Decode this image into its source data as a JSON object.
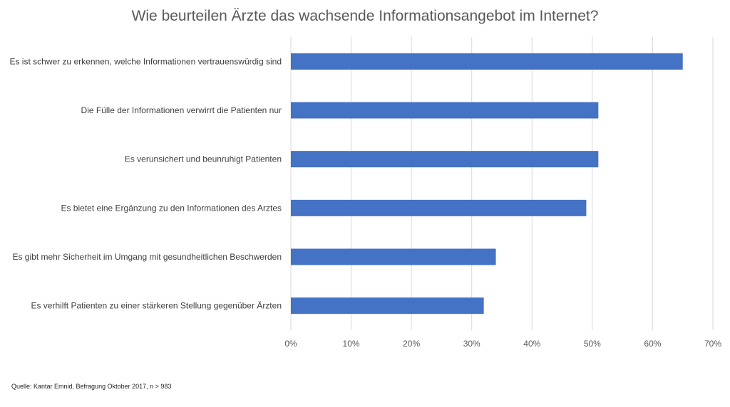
{
  "chart_data": {
    "type": "bar",
    "orientation": "horizontal",
    "title": "Wie beurteilen Ärzte das wachsende Informationsangebot im Internet?",
    "categories": [
      "Es ist schwer zu erkennen, welche Informationen vertrauenswürdig sind",
      "Die Fülle der Informationen verwirrt die Patienten nur",
      "Es verunsichert und beunruhigt Patienten",
      "Es bietet eine Ergänzung zu den Informationen des Arztes",
      "Es gibt mehr Sicherheit im Umgang mit gesundheitlichen Beschwerden",
      "Es verhilft Patienten zu einer stärkeren Stellung gegenüber Ärzten"
    ],
    "values": [
      65,
      51,
      51,
      49,
      34,
      32
    ],
    "value_unit": "%",
    "xlim": [
      0,
      70
    ],
    "xticks": [
      0,
      10,
      20,
      30,
      40,
      50,
      60,
      70
    ],
    "tick_labels": [
      "0%",
      "10%",
      "20%",
      "30%",
      "40%",
      "50%",
      "60%",
      "70%"
    ],
    "grid": "vertical",
    "legend": "none",
    "bar_color": "#4472C4",
    "grid_color": "#D9D9D9"
  },
  "source": "Quelle: Kantar Emnid, Befragung Oktober 2017, n > 983"
}
